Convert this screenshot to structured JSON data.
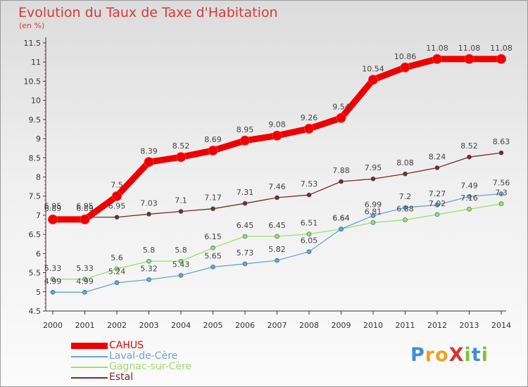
{
  "title": "Evolution du Taux de Taxe d'Habitation",
  "unit": "(en %)",
  "logo": {
    "text": "ProXiti",
    "colors": [
      "#3d8fd6",
      "#f0a020",
      "#f0a020",
      "#d8342c",
      "#7cc43c",
      "#3d8fd6",
      "#7cc43c"
    ]
  },
  "chart_data": {
    "type": "line",
    "title": "Evolution du Taux de Taxe d'Habitation",
    "ylabel": "(en %)",
    "xlabel": "",
    "categories": [
      "2000",
      "2001",
      "2002",
      "2003",
      "2004",
      "2005",
      "2006",
      "2007",
      "2008",
      "2009",
      "2010",
      "2011",
      "2012",
      "2013",
      "2014"
    ],
    "ylim": [
      4.5,
      11.5
    ],
    "yticks": [
      "4.5",
      "5",
      "5.5",
      "6",
      "6.5",
      "7",
      "7.5",
      "8",
      "8.5",
      "9",
      "9.5",
      "10",
      "10.5",
      "11",
      "11.5"
    ],
    "grid": false,
    "legend": "bottom-left",
    "series": [
      {
        "name": "CAHUS",
        "color": "#ee0000",
        "values": [
          6.89,
          6.89,
          7.5,
          8.39,
          8.52,
          8.69,
          8.95,
          9.08,
          9.26,
          9.54,
          10.54,
          10.86,
          11.08,
          11.08,
          11.08
        ]
      },
      {
        "name": "Laval-de-Cère",
        "color": "#6aa3d2",
        "values": [
          4.99,
          4.99,
          5.24,
          5.32,
          5.43,
          5.65,
          5.73,
          5.82,
          6.05,
          6.64,
          6.99,
          7.2,
          7.27,
          7.49,
          7.56
        ]
      },
      {
        "name": "Gagnac-sur-Cère",
        "color": "#9cde6a",
        "values": [
          5.33,
          5.33,
          5.6,
          5.8,
          5.8,
          6.15,
          6.45,
          6.45,
          6.51,
          6.64,
          6.81,
          6.88,
          7.02,
          7.16,
          7.3
        ]
      },
      {
        "name": "Estal",
        "color": "#7a2a2a",
        "values": [
          6.95,
          6.95,
          6.95,
          7.03,
          7.1,
          7.17,
          7.31,
          7.46,
          7.53,
          7.88,
          7.95,
          8.08,
          8.24,
          8.52,
          8.63
        ]
      }
    ]
  }
}
